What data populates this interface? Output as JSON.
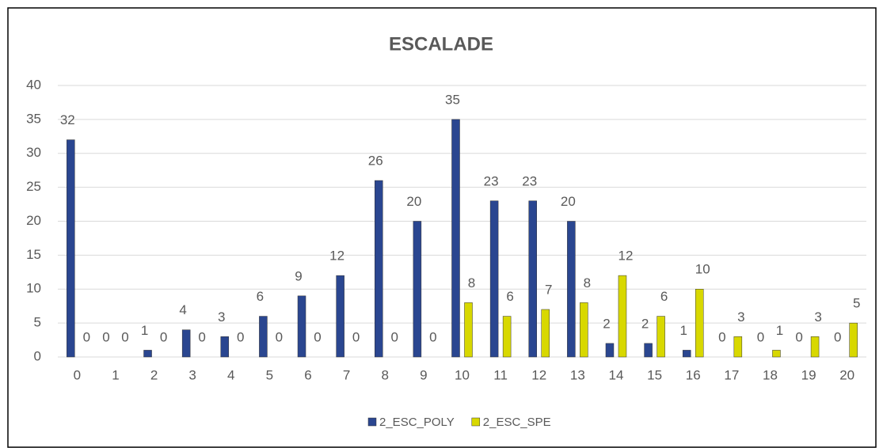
{
  "chart_data": {
    "type": "bar",
    "title": "ESCALADE",
    "categories": [
      "0",
      "1",
      "2",
      "3",
      "4",
      "5",
      "6",
      "7",
      "8",
      "9",
      "10",
      "11",
      "12",
      "13",
      "14",
      "15",
      "16",
      "17",
      "18",
      "19",
      "20"
    ],
    "series": [
      {
        "name": "2_ESC_POLY",
        "color": "#2a4690",
        "values": [
          32,
          0,
          1,
          4,
          3,
          6,
          9,
          12,
          26,
          20,
          35,
          23,
          23,
          20,
          2,
          2,
          1,
          0,
          0,
          0,
          0
        ]
      },
      {
        "name": "2_ESC_SPE",
        "color": "#d8d800",
        "values": [
          0,
          0,
          0,
          0,
          0,
          0,
          0,
          0,
          0,
          0,
          8,
          6,
          7,
          8,
          12,
          6,
          10,
          3,
          1,
          3,
          5
        ]
      }
    ],
    "ylim": [
      0,
      40
    ],
    "yticks": [
      0,
      5,
      10,
      15,
      20,
      25,
      30,
      35,
      40
    ],
    "grid": true,
    "legend": "bottom"
  }
}
